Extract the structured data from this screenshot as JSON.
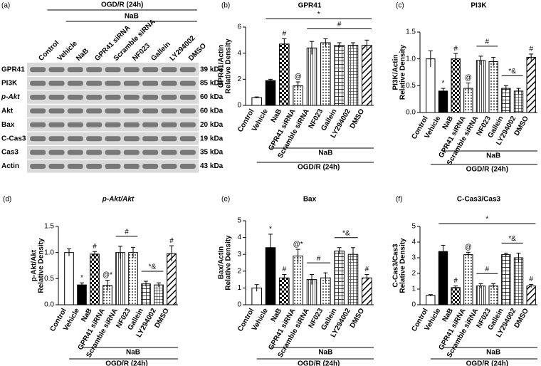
{
  "blot": {
    "panel": "(a)",
    "lanes": [
      "Control",
      "Vehicle",
      "NaB",
      "GPR41 siRNA",
      "Scramble siRNA",
      "NF023",
      "Gallein",
      "LY294002",
      "DMSO"
    ],
    "groups": [
      {
        "label": "OGD/R (24h)",
        "from": 1,
        "to": 8
      },
      {
        "label": "NaB",
        "from": 2,
        "to": 8
      }
    ],
    "rows": [
      "GPR41",
      "PI3K",
      "p-Akt",
      "Akt",
      "Bax",
      "C-Cas3",
      "Cas3",
      "Actin"
    ],
    "sizes": [
      "39 kDa",
      "85 kDa",
      "60 kDa",
      "60 kDa",
      "20 kDa",
      "19 kDa",
      "35 kDa",
      "43 kDa"
    ]
  },
  "bar_patterns": [
    "white",
    "black",
    "checker",
    "dots",
    "vlines",
    "dots",
    "grid",
    "cross",
    "diag"
  ],
  "chart_data": [
    {
      "type": "bar",
      "panel": "(b)",
      "title": "GPR41",
      "ylabel": [
        "GPR41/Actin",
        "Relative Density"
      ],
      "categories": [
        "Control",
        "Vehicle",
        "NaB",
        "GPR41 siRNA",
        "Scramble siRNA",
        "NF023",
        "Gallein",
        "LY294002",
        "DMSO"
      ],
      "values": [
        0.6,
        1.9,
        4.7,
        1.5,
        4.4,
        4.8,
        4.6,
        4.6,
        4.6
      ],
      "errors": [
        0.05,
        0.1,
        0.4,
        0.3,
        0.5,
        0.3,
        0.2,
        0.2,
        0.4
      ],
      "ylim": [
        0,
        6
      ],
      "yticks": [
        0,
        2,
        4,
        6
      ],
      "markers": [
        null,
        null,
        "#",
        "@",
        null,
        null,
        null,
        null,
        null
      ],
      "brackets": [
        {
          "label": "#",
          "from": 4,
          "to": 8
        },
        {
          "label": "*",
          "from": 1,
          "to": 8
        }
      ],
      "groups": [
        {
          "label": "NaB",
          "from": 2,
          "to": 8
        },
        {
          "label": "OGD/R (24h)",
          "from": 1,
          "to": 8
        }
      ]
    },
    {
      "type": "bar",
      "panel": "(c)",
      "title": "PI3K",
      "ylabel": [
        "PI3K/Actin",
        "Relative Density"
      ],
      "categories": [
        "Control",
        "Vehicle",
        "NaB",
        "GPR41 siRNA",
        "Scramble siRNA",
        "NF023",
        "Gallein",
        "LY294002",
        "DMSO"
      ],
      "values": [
        1.0,
        0.4,
        1.0,
        0.45,
        0.97,
        0.95,
        0.45,
        0.4,
        1.03
      ],
      "errors": [
        0.15,
        0.05,
        0.1,
        0.1,
        0.08,
        0.08,
        0.05,
        0.05,
        0.06
      ],
      "ylim": [
        0,
        1.5
      ],
      "yticks": [
        {
          "value": 0,
          "label": "0.0"
        },
        {
          "value": 0.5,
          "label": "0.5"
        },
        {
          "value": 1,
          "label": "1.0"
        },
        {
          "value": 1.5,
          "label": "1.5"
        }
      ],
      "markers": [
        null,
        "*",
        "#",
        "@",
        null,
        null,
        null,
        null,
        "#"
      ],
      "brackets": [
        {
          "label": "#",
          "from": 4,
          "to": 5
        },
        {
          "label": "*&",
          "from": 6,
          "to": 7
        }
      ],
      "groups": [
        {
          "label": "NaB",
          "from": 2,
          "to": 8
        },
        {
          "label": "OGD/R (24h)",
          "from": 1,
          "to": 8
        }
      ]
    },
    {
      "type": "bar",
      "panel": "(d)",
      "title": "p-Akt/Akt",
      "ylabel": [
        "p-Akt/Akt",
        "Relative Density"
      ],
      "categories": [
        "Control",
        "Vehicle",
        "NaB",
        "GPR41 siRNA",
        "Scramble siRNA",
        "NF023",
        "Gallein",
        "LY294002",
        "DMSO"
      ],
      "values": [
        1.0,
        0.38,
        0.97,
        0.37,
        1.0,
        1.0,
        0.4,
        0.38,
        0.98
      ],
      "errors": [
        0.07,
        0.04,
        0.05,
        0.1,
        0.12,
        0.1,
        0.05,
        0.04,
        0.15
      ],
      "ylim": [
        0,
        1.5
      ],
      "yticks": [
        {
          "value": 0,
          "label": "0.0"
        },
        {
          "value": 0.5,
          "label": "0.5"
        },
        {
          "value": 1,
          "label": "1.0"
        },
        {
          "value": 1.5,
          "label": "1.5"
        }
      ],
      "markers": [
        null,
        "*",
        "#",
        "@*",
        null,
        null,
        null,
        null,
        "#"
      ],
      "brackets": [
        {
          "label": "#",
          "from": 4,
          "to": 5
        },
        {
          "label": "*&",
          "from": 6,
          "to": 7
        }
      ],
      "groups": [
        {
          "label": "NaB",
          "from": 2,
          "to": 8
        },
        {
          "label": "OGD/R (24h)",
          "from": 1,
          "to": 8
        }
      ]
    },
    {
      "type": "bar",
      "panel": "(e)",
      "title": "Bax",
      "ylabel": [
        "Bax/Actin",
        "Relative Density"
      ],
      "categories": [
        "Control",
        "Vehicle",
        "NaB",
        "GPR41 siRNA",
        "Scramble siRNA",
        "NF023",
        "Gallein",
        "LY294002",
        "DMSO"
      ],
      "values": [
        1.0,
        3.4,
        1.6,
        2.9,
        1.5,
        1.6,
        3.2,
        3.0,
        1.6
      ],
      "errors": [
        0.2,
        0.8,
        0.2,
        0.4,
        0.3,
        0.3,
        0.2,
        0.4,
        0.2
      ],
      "ylim": [
        0,
        5
      ],
      "yticks": [
        0,
        1,
        2,
        3,
        4,
        5
      ],
      "markers": [
        null,
        "*",
        "#",
        "@*",
        null,
        null,
        null,
        null,
        "#"
      ],
      "brackets": [
        {
          "label": "#",
          "from": 4,
          "to": 5
        },
        {
          "label": "*&",
          "from": 6,
          "to": 7
        }
      ],
      "groups": [
        {
          "label": "NaB",
          "from": 2,
          "to": 8
        },
        {
          "label": "OGD/R (24h)",
          "from": 1,
          "to": 8
        }
      ]
    },
    {
      "type": "bar",
      "panel": "(f)",
      "title": "C-Cas3/Cas3",
      "ylabel": [
        "C-Cas3/Cas3",
        "Relative Density"
      ],
      "categories": [
        "Control",
        "Vehicle",
        "NaB",
        "GPR41 siRNA",
        "Scramble siRNA",
        "NF023",
        "Gallein",
        "LY294002",
        "DMSO"
      ],
      "values": [
        0.6,
        3.4,
        1.1,
        3.2,
        1.2,
        1.2,
        3.2,
        3.0,
        1.2
      ],
      "errors": [
        0.05,
        0.4,
        0.1,
        0.15,
        0.15,
        0.15,
        0.1,
        0.3,
        0.1
      ],
      "ylim": [
        0,
        5
      ],
      "yticks": [
        0,
        1,
        2,
        3,
        4,
        5
      ],
      "markers": [
        null,
        null,
        "#",
        "@",
        null,
        null,
        null,
        null,
        "#"
      ],
      "brackets": [
        {
          "label": "#",
          "from": 4,
          "to": 5
        },
        {
          "label": "*&",
          "from": 6,
          "to": 7
        },
        {
          "label": "*",
          "from": 1,
          "to": 8
        }
      ],
      "groups": [
        {
          "label": "NaB",
          "from": 2,
          "to": 8
        },
        {
          "label": "OGD/R (24h)",
          "from": 1,
          "to": 8
        }
      ]
    }
  ]
}
